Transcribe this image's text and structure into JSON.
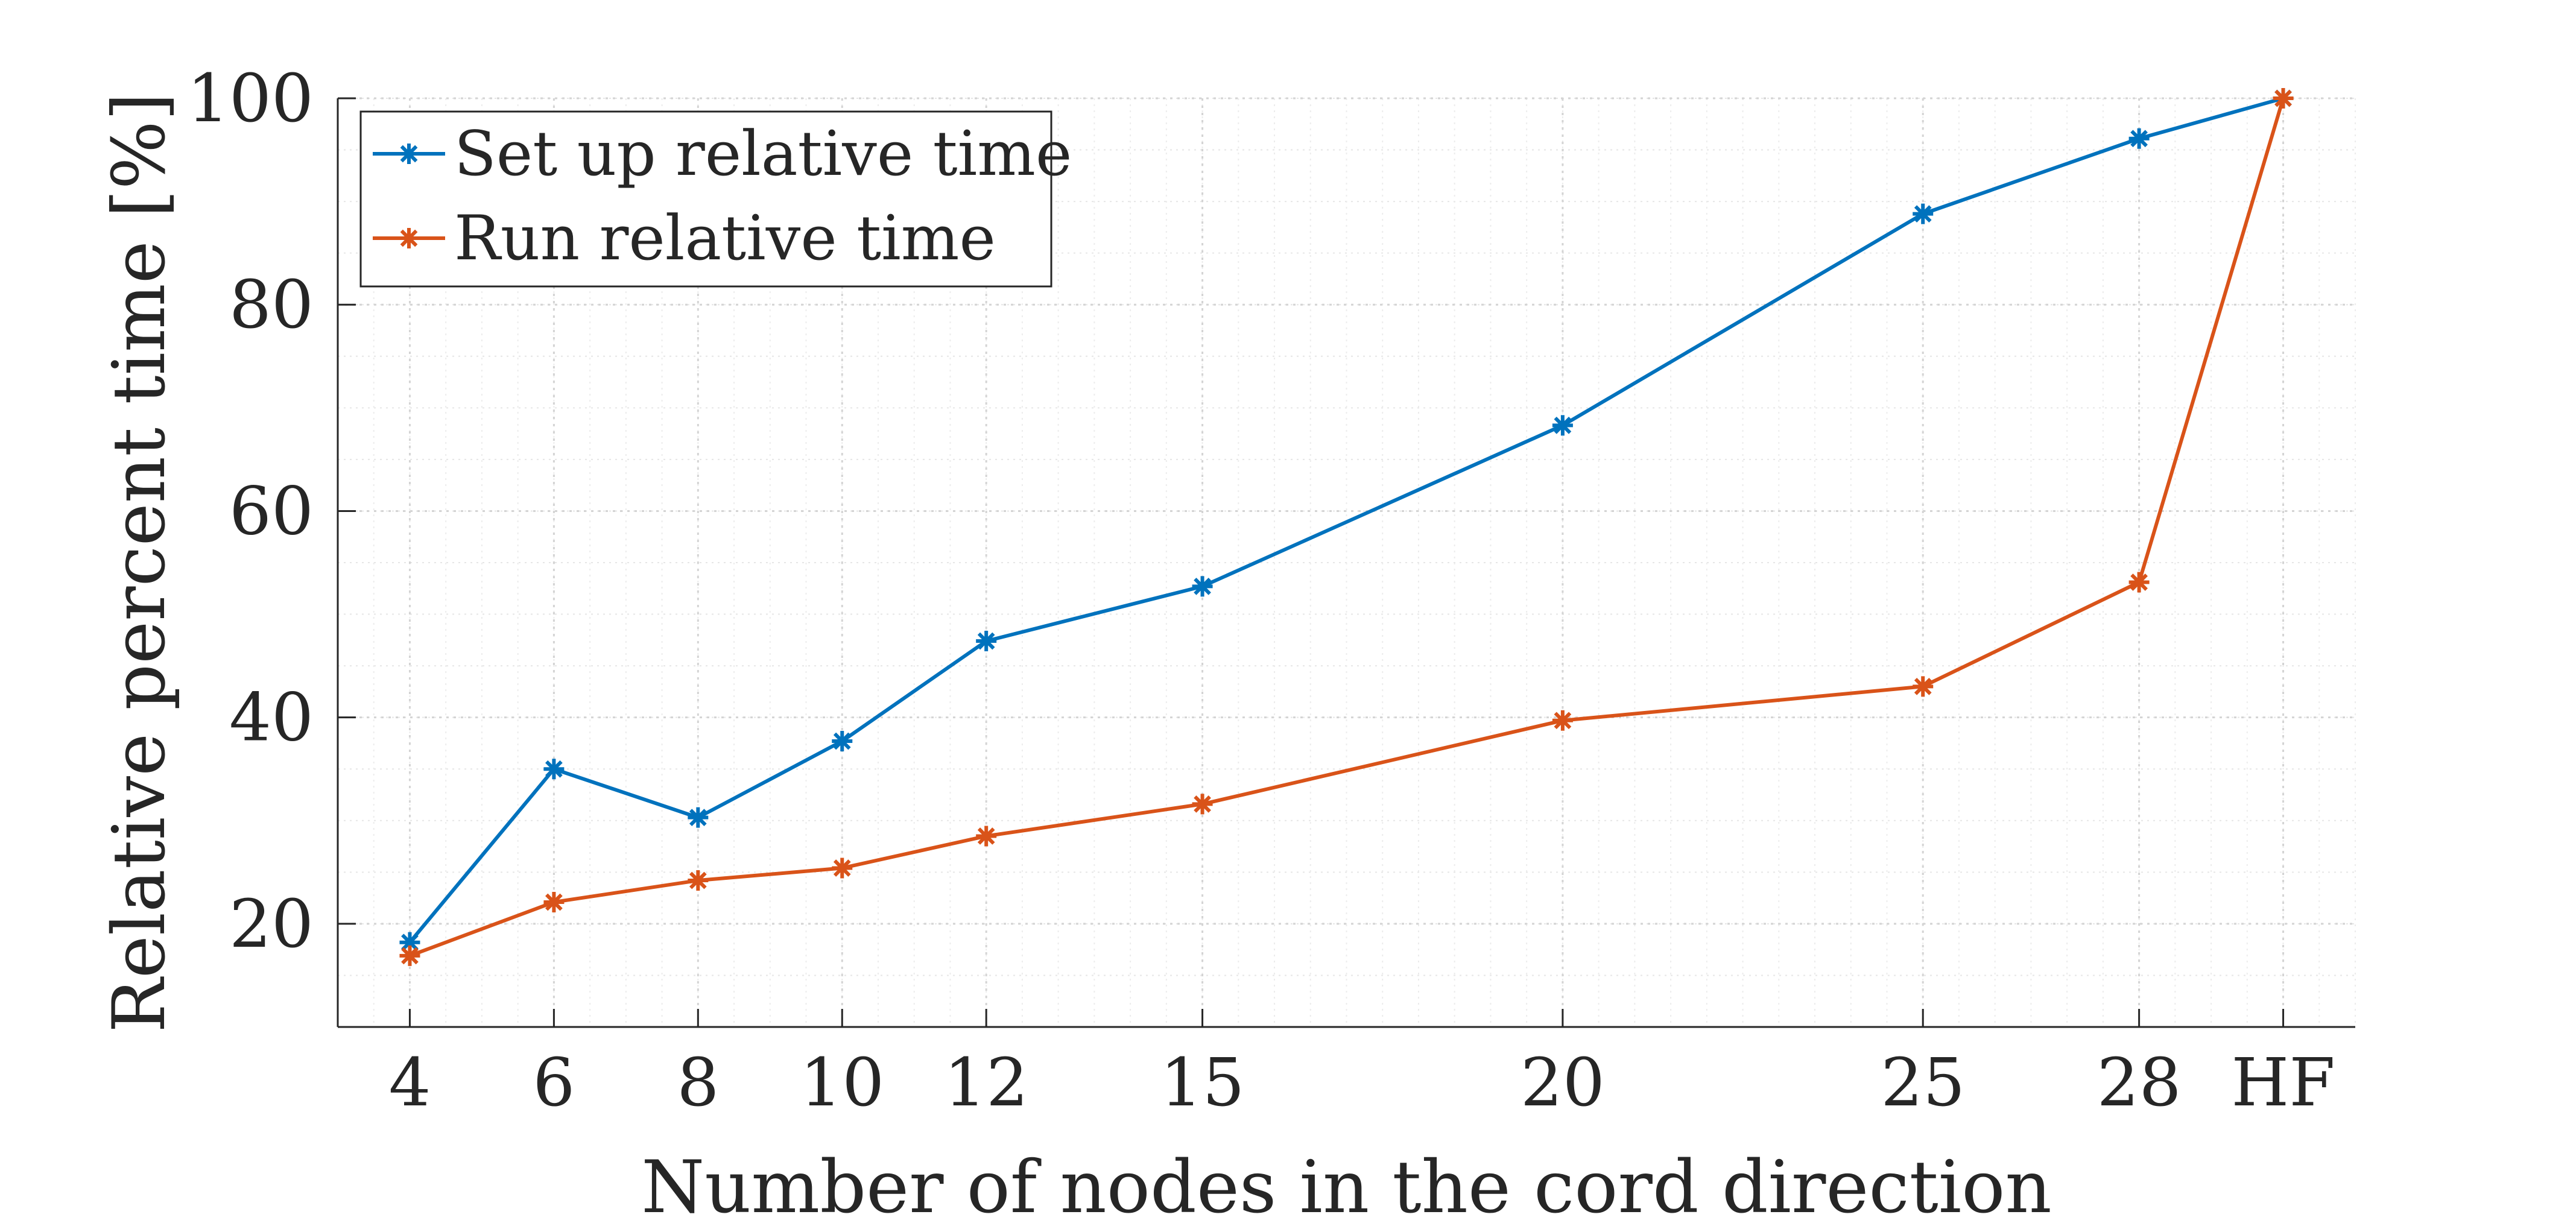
{
  "chart_data": {
    "type": "line",
    "x_tick_labels": [
      "4",
      "6",
      "8",
      "10",
      "12",
      "15",
      "20",
      "25",
      "28",
      "HF"
    ],
    "x_values": [
      4,
      6,
      8,
      10,
      12,
      15,
      20,
      25,
      28,
      30
    ],
    "xlim": [
      3,
      31
    ],
    "ylim": [
      10,
      100
    ],
    "y_ticks": [
      20,
      40,
      60,
      80,
      100
    ],
    "xlabel": "Number of nodes in the cord direction",
    "ylabel": "Relative percent time [%]",
    "grid": true,
    "minor_grid": true,
    "legend_position": "top-left",
    "series": [
      {
        "name": "Set up relative time",
        "color": "#0072BD",
        "marker": "asterisk",
        "values": [
          18.2,
          35.0,
          30.3,
          37.7,
          47.4,
          52.7,
          68.3,
          88.8,
          96.1,
          100
        ]
      },
      {
        "name": "Run relative time",
        "color": "#D95319",
        "marker": "asterisk",
        "values": [
          16.9,
          22.1,
          24.2,
          25.4,
          28.5,
          31.6,
          39.7,
          43.0,
          53.1,
          100
        ]
      }
    ]
  }
}
